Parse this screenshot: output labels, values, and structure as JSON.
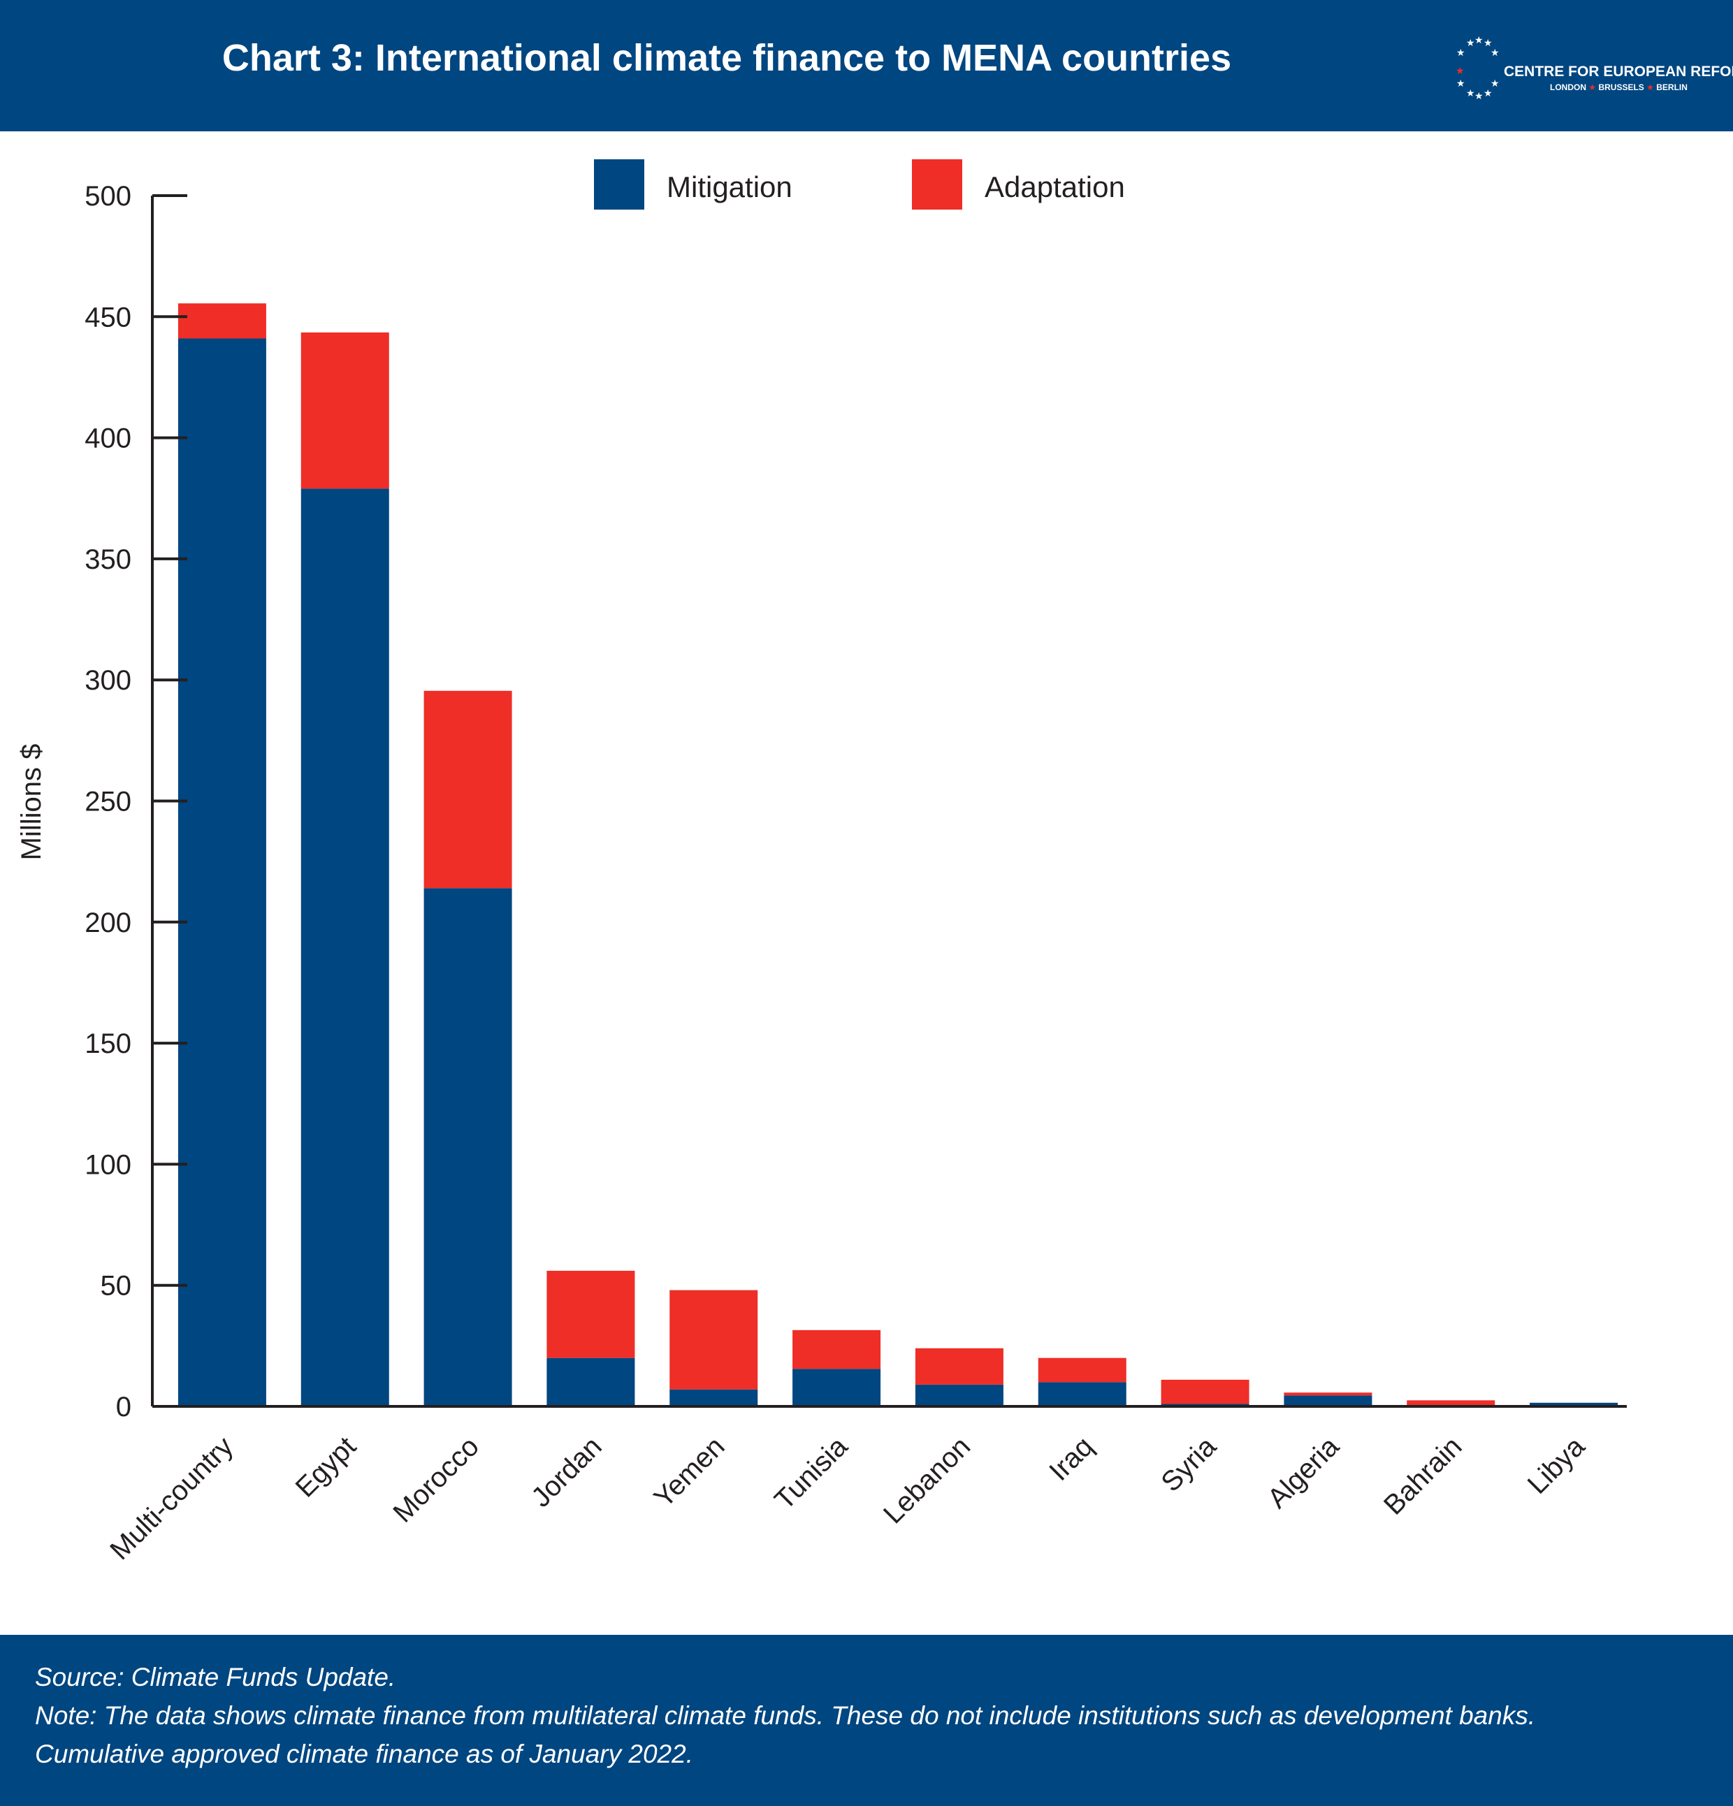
{
  "header": {
    "title": "Chart 3: International climate finance to MENA countries",
    "logo_name": "CENTRE FOR EUROPEAN REFORM",
    "logo_cities": [
      "LONDON",
      "BRUSSELS",
      "BERLIN"
    ]
  },
  "colors": {
    "header_bg": "#004680",
    "mitigation": "#004680",
    "adaptation": "#ee2e27",
    "axis": "#231f20",
    "logo_accent": "#ee2e27"
  },
  "chart_data": {
    "type": "bar",
    "stacked": true,
    "categories": [
      "Multi-country",
      "Egypt",
      "Morocco",
      "Jordan",
      "Yemen",
      "Tunisia",
      "Lebanon",
      "Iraq",
      "Syria",
      "Algeria",
      "Bahrain",
      "Libya"
    ],
    "series": [
      {
        "name": "Mitigation",
        "color": "#004680",
        "values": [
          441,
          379,
          214,
          20,
          7,
          15.5,
          9,
          10,
          1,
          4.5,
          0.2,
          1.5
        ]
      },
      {
        "name": "Adaptation",
        "color": "#ee2e27",
        "values": [
          14.5,
          64.5,
          81.5,
          36,
          41,
          16,
          15,
          10,
          10,
          1.2,
          2.3,
          0
        ]
      }
    ],
    "ylabel": "Millions $",
    "ylim": [
      0,
      500
    ],
    "yticks": [
      "0",
      "50",
      "100",
      "150",
      "200",
      "250",
      "300",
      "350",
      "400",
      "450",
      "500"
    ],
    "grid": false,
    "legend_position": "top-center"
  },
  "footer": {
    "source": "Source: Climate Funds Update.",
    "note": "Note: The data shows climate finance from multilateral climate funds. These do not include institutions such as development banks.",
    "extra": "Cumulative approved climate finance as of January 2022."
  }
}
